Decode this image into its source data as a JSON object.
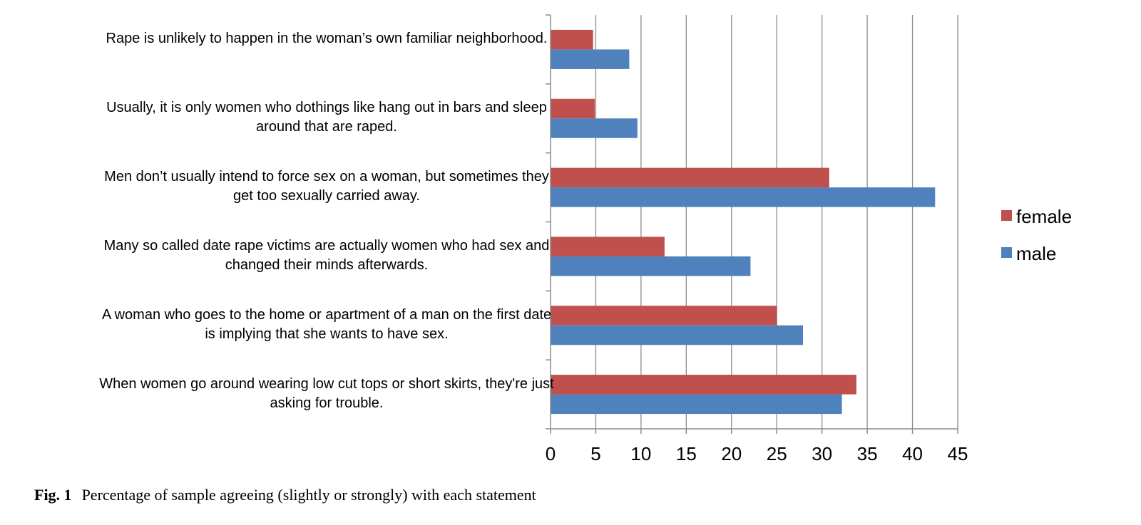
{
  "chart_data": {
    "type": "bar",
    "orientation": "horizontal",
    "categories": [
      "Rape is unlikely to happen in the woman’s own familiar neighborhood.",
      "Usually, it is only women who dothings like hang out in bars and sleep around that are raped.",
      "Men don’t usually intend to force sex on a woman, but sometimes they get too sexually carried away.",
      "Many so called date rape victims are actually women who had sex and changed their minds afterwards.",
      "A woman who goes to the home or apartment of a man on the first date is implying that she wants to have sex.",
      "When women go around wearing low cut tops or short skirts, they're just asking for trouble."
    ],
    "series": [
      {
        "name": "female",
        "color": "#c0504d",
        "values": [
          4.7,
          4.9,
          30.8,
          12.6,
          25.0,
          33.8
        ]
      },
      {
        "name": "male",
        "color": "#4f81bd",
        "values": [
          8.7,
          9.6,
          42.5,
          22.1,
          27.9,
          32.2
        ]
      }
    ],
    "xlim": [
      0,
      45
    ],
    "xticks": [
      0,
      5,
      10,
      15,
      20,
      25,
      30,
      35,
      40,
      45
    ],
    "grid": "vertical",
    "legend_position": "right",
    "title": "",
    "xlabel": "",
    "ylabel": ""
  },
  "caption": {
    "label": "Fig. 1",
    "text": "Percentage of sample agreeing (slightly or strongly) with each statement"
  }
}
